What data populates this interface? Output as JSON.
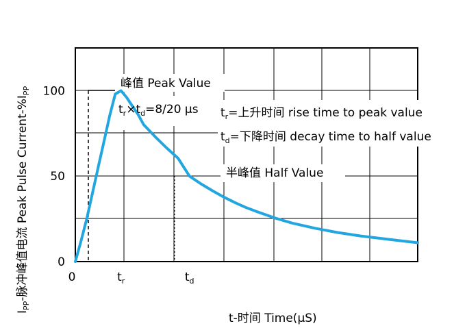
{
  "chart_data": {
    "type": "line",
    "xlabel": "t-时间 Time(μS)",
    "ylabel": "Iₚₚ-脉冲峰值电流  Peak Pulse Current-%Iₚₚ",
    "ylabel_parts": {
      "i1": "I",
      "sub1": "PP",
      "mid": "-脉冲峰值电流  Peak Pulse Current-%I",
      "sub2": "PP"
    },
    "ylim": [
      0,
      125
    ],
    "y_ticks": [
      {
        "value": 0,
        "label": "0"
      },
      {
        "value": 50,
        "label": "50"
      },
      {
        "value": 100,
        "label": "100"
      }
    ],
    "x_ticks": [
      {
        "value": -0.6,
        "label": "0"
      },
      {
        "value": 8,
        "label": "t",
        "sub": "r"
      },
      {
        "value": 20,
        "label": "t",
        "sub": "d"
      }
    ],
    "xlim": [
      0,
      60
    ],
    "grid": true,
    "series": [
      {
        "color": "#22a6e0",
        "x": [
          0,
          1,
          2,
          3,
          4,
          5,
          6,
          7,
          8,
          9,
          10,
          11,
          12,
          14,
          16,
          18,
          20,
          22,
          24,
          26,
          28,
          30,
          32,
          35,
          38,
          42,
          46,
          50,
          55,
          60
        ],
        "y": [
          0,
          12,
          25,
          40,
          55,
          70,
          85,
          98,
          100,
          96,
          91,
          86,
          80,
          73,
          66.5,
          60.5,
          50,
          45.5,
          41.5,
          37.8,
          34.5,
          31.5,
          29,
          25.5,
          22.5,
          19.5,
          17,
          15,
          13,
          11
        ]
      }
    ],
    "annotations": {
      "peak_label": "峰值 Peak Value",
      "formula": {
        "t1": "t",
        "s1": "r",
        "mid": "×t",
        "s2": "d",
        "rest": "=8/20 μs"
      },
      "rise_def": {
        "t": "t",
        "s": "r",
        "rest": "=上升时间 rise time to peak value"
      },
      "decay_def": {
        "t": "t",
        "s": "d",
        "rest": "=下降时间 decay time to half value"
      },
      "half_label": "半峰值 Half Value"
    }
  }
}
